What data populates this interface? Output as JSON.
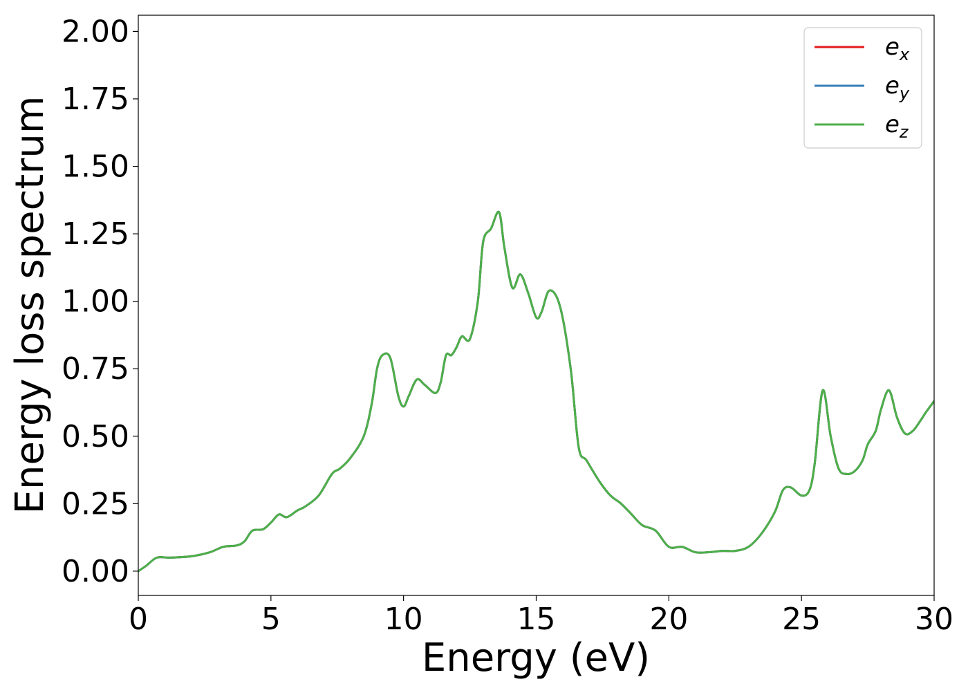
{
  "chart_data": {
    "type": "line",
    "xlabel": "Energy (eV)",
    "ylabel": "Energy loss spectrum",
    "xlim": [
      0,
      30
    ],
    "ylim": [
      -0.09,
      2.06
    ],
    "xticks": [
      0,
      5,
      10,
      15,
      20,
      25,
      30
    ],
    "xtick_labels": [
      "0",
      "5",
      "10",
      "15",
      "20",
      "25",
      "30"
    ],
    "yticks": [
      0.0,
      0.25,
      0.5,
      0.75,
      1.0,
      1.25,
      1.5,
      1.75,
      2.0
    ],
    "ytick_labels": [
      "0.00",
      "0.25",
      "0.50",
      "0.75",
      "1.00",
      "1.25",
      "1.50",
      "1.75",
      "2.00"
    ],
    "grid": false,
    "legend_position": "top-right",
    "series": [
      {
        "name": "e",
        "subscript": "x",
        "color": "#e41a1c"
      },
      {
        "name": "e",
        "subscript": "y",
        "color": "#377eb8"
      },
      {
        "name": "e",
        "subscript": "z",
        "color": "#4daf4a"
      }
    ],
    "x": [
      0,
      0.3,
      0.7,
      1.2,
      2.0,
      2.7,
      3.2,
      3.7,
      4.0,
      4.3,
      4.7,
      5.0,
      5.3,
      5.6,
      6.0,
      6.3,
      6.8,
      7.3,
      7.6,
      8.0,
      8.5,
      8.8,
      9.0,
      9.2,
      9.5,
      9.8,
      10.0,
      10.2,
      10.5,
      10.8,
      11.2,
      11.4,
      11.6,
      11.8,
      12.0,
      12.2,
      12.5,
      12.8,
      13.0,
      13.3,
      13.6,
      13.8,
      14.1,
      14.4,
      14.7,
      15.0,
      15.2,
      15.5,
      15.9,
      16.3,
      16.6,
      16.9,
      17.4,
      17.8,
      18.2,
      18.6,
      19.0,
      19.5,
      20.0,
      20.5,
      21.0,
      21.5,
      22.0,
      22.5,
      23.0,
      23.5,
      24.0,
      24.3,
      24.6,
      25.0,
      25.3,
      25.5,
      25.8,
      26.1,
      26.4,
      26.7,
      27.0,
      27.3,
      27.5,
      27.8,
      28.0,
      28.3,
      28.6,
      28.9,
      29.2,
      29.5,
      29.7,
      30.0
    ],
    "y_values_by_series": [
      [
        0.0,
        0.02,
        0.05,
        0.05,
        0.055,
        0.07,
        0.09,
        0.095,
        0.11,
        0.15,
        0.155,
        0.18,
        0.21,
        0.2,
        0.225,
        0.24,
        0.28,
        0.36,
        0.38,
        0.42,
        0.5,
        0.62,
        0.75,
        0.8,
        0.79,
        0.65,
        0.61,
        0.65,
        0.71,
        0.69,
        0.66,
        0.7,
        0.8,
        0.8,
        0.83,
        0.87,
        0.86,
        1.0,
        1.22,
        1.27,
        1.33,
        1.2,
        1.05,
        1.1,
        1.03,
        0.94,
        0.96,
        1.04,
        0.98,
        0.75,
        0.46,
        0.41,
        0.33,
        0.28,
        0.25,
        0.21,
        0.17,
        0.15,
        0.09,
        0.09,
        0.07,
        0.07,
        0.075,
        0.075,
        0.09,
        0.14,
        0.22,
        0.3,
        0.31,
        0.28,
        0.3,
        0.4,
        0.67,
        0.5,
        0.38,
        0.36,
        0.37,
        0.41,
        0.47,
        0.52,
        0.6,
        0.67,
        0.57,
        0.51,
        0.52,
        0.56,
        0.59,
        0.63
      ],
      [
        0.0,
        0.02,
        0.05,
        0.05,
        0.055,
        0.07,
        0.09,
        0.095,
        0.11,
        0.15,
        0.155,
        0.18,
        0.21,
        0.2,
        0.225,
        0.24,
        0.28,
        0.36,
        0.38,
        0.42,
        0.5,
        0.62,
        0.75,
        0.8,
        0.79,
        0.65,
        0.61,
        0.65,
        0.71,
        0.69,
        0.66,
        0.7,
        0.8,
        0.8,
        0.83,
        0.87,
        0.86,
        1.0,
        1.22,
        1.27,
        1.33,
        1.2,
        1.05,
        1.1,
        1.03,
        0.94,
        0.96,
        1.04,
        0.98,
        0.75,
        0.46,
        0.41,
        0.33,
        0.28,
        0.25,
        0.21,
        0.17,
        0.15,
        0.09,
        0.09,
        0.07,
        0.07,
        0.075,
        0.075,
        0.09,
        0.14,
        0.22,
        0.3,
        0.31,
        0.28,
        0.3,
        0.4,
        0.67,
        0.5,
        0.38,
        0.36,
        0.37,
        0.41,
        0.47,
        0.52,
        0.6,
        0.67,
        0.57,
        0.51,
        0.52,
        0.56,
        0.59,
        0.63
      ],
      [
        0.0,
        0.02,
        0.05,
        0.05,
        0.055,
        0.07,
        0.09,
        0.095,
        0.11,
        0.15,
        0.155,
        0.18,
        0.21,
        0.2,
        0.225,
        0.24,
        0.28,
        0.36,
        0.38,
        0.42,
        0.5,
        0.62,
        0.75,
        0.8,
        0.79,
        0.65,
        0.61,
        0.65,
        0.71,
        0.69,
        0.66,
        0.7,
        0.8,
        0.8,
        0.83,
        0.87,
        0.86,
        1.0,
        1.22,
        1.27,
        1.33,
        1.2,
        1.05,
        1.1,
        1.03,
        0.94,
        0.96,
        1.04,
        0.98,
        0.75,
        0.46,
        0.41,
        0.33,
        0.28,
        0.25,
        0.21,
        0.17,
        0.15,
        0.09,
        0.09,
        0.07,
        0.07,
        0.075,
        0.075,
        0.09,
        0.14,
        0.22,
        0.3,
        0.31,
        0.28,
        0.3,
        0.4,
        0.67,
        0.5,
        0.38,
        0.36,
        0.37,
        0.41,
        0.47,
        0.52,
        0.6,
        0.67,
        0.57,
        0.51,
        0.52,
        0.56,
        0.59,
        0.63
      ]
    ]
  }
}
